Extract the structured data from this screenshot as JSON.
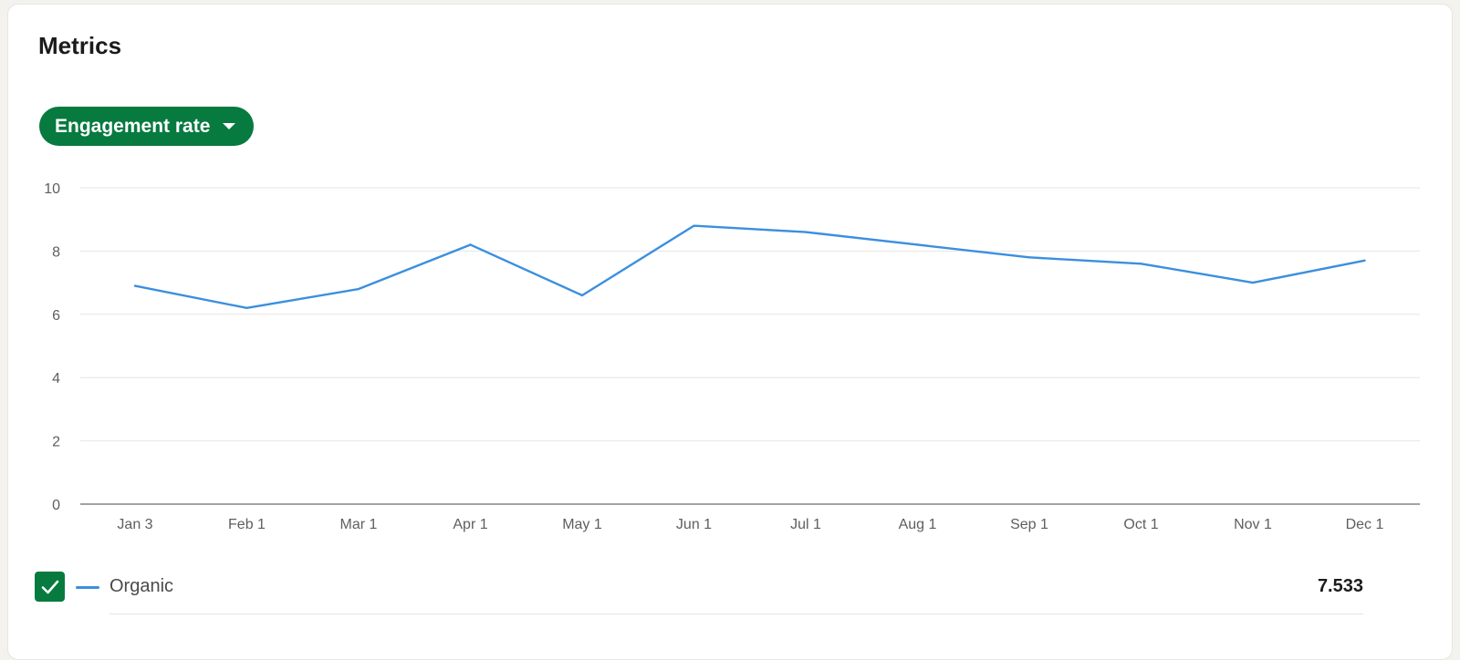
{
  "card": {
    "title": "Metrics"
  },
  "metric_selector": {
    "label": "Engagement rate",
    "icon": "caret-down-icon"
  },
  "legend": {
    "items": [
      {
        "checked": true,
        "label": "Organic",
        "value": "7.533",
        "color": "#3b8fdf"
      }
    ],
    "checkbox_color": "#077a3f",
    "check_icon": "checkmark-icon"
  },
  "chart_data": {
    "type": "line",
    "categories": [
      "Jan 3",
      "Feb 1",
      "Mar 1",
      "Apr 1",
      "May 1",
      "Jun 1",
      "Jul 1",
      "Aug 1",
      "Sep 1",
      "Oct 1",
      "Nov 1",
      "Dec 1"
    ],
    "y_ticks": [
      "0",
      "2",
      "4",
      "6",
      "8",
      "10"
    ],
    "ylim": [
      0,
      10
    ],
    "grid": true,
    "series": [
      {
        "name": "Organic",
        "color": "#3b8fdf",
        "values": [
          6.9,
          6.2,
          6.8,
          8.2,
          6.6,
          8.8,
          8.6,
          8.2,
          7.8,
          7.6,
          7.0,
          7.7
        ]
      }
    ]
  }
}
